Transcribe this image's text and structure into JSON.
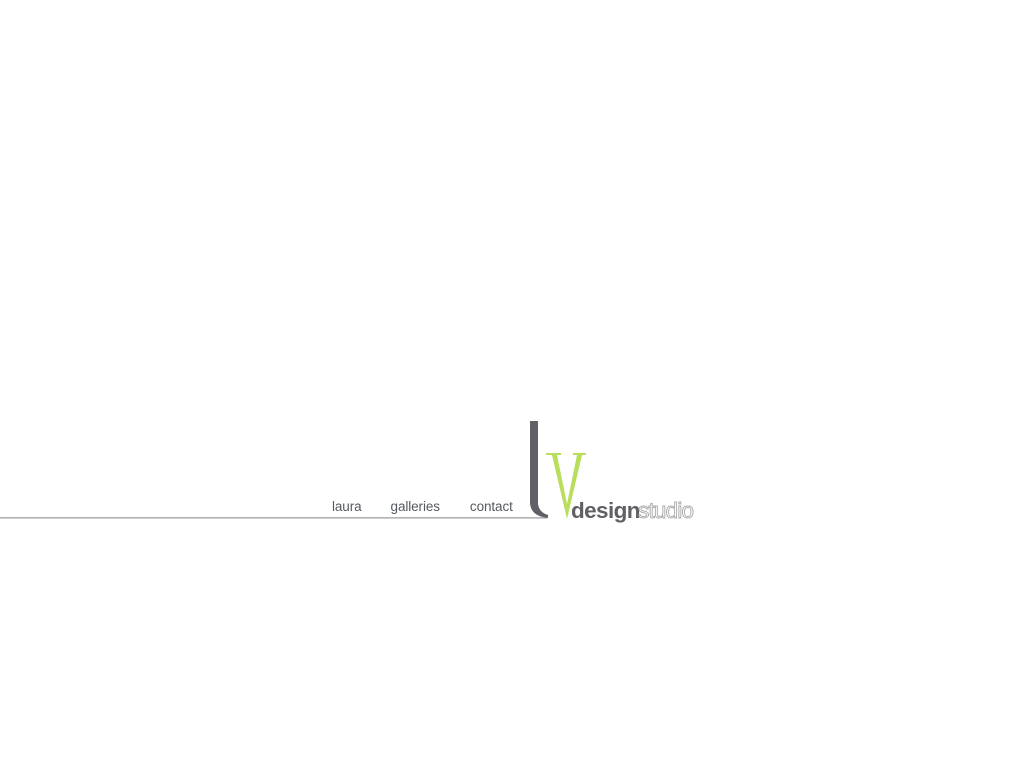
{
  "nav": {
    "items": [
      {
        "id": "laura",
        "label": "laura"
      },
      {
        "id": "galleries",
        "label": "galleries"
      },
      {
        "id": "contact",
        "label": "contact"
      }
    ]
  },
  "logo": {
    "letter_l": "l",
    "letter_v": "v",
    "word_design": "design",
    "word_studio": "studio",
    "colors": {
      "dark": "#5f6166",
      "accent": "#b8df5c",
      "light": "#a8a8a8"
    }
  }
}
